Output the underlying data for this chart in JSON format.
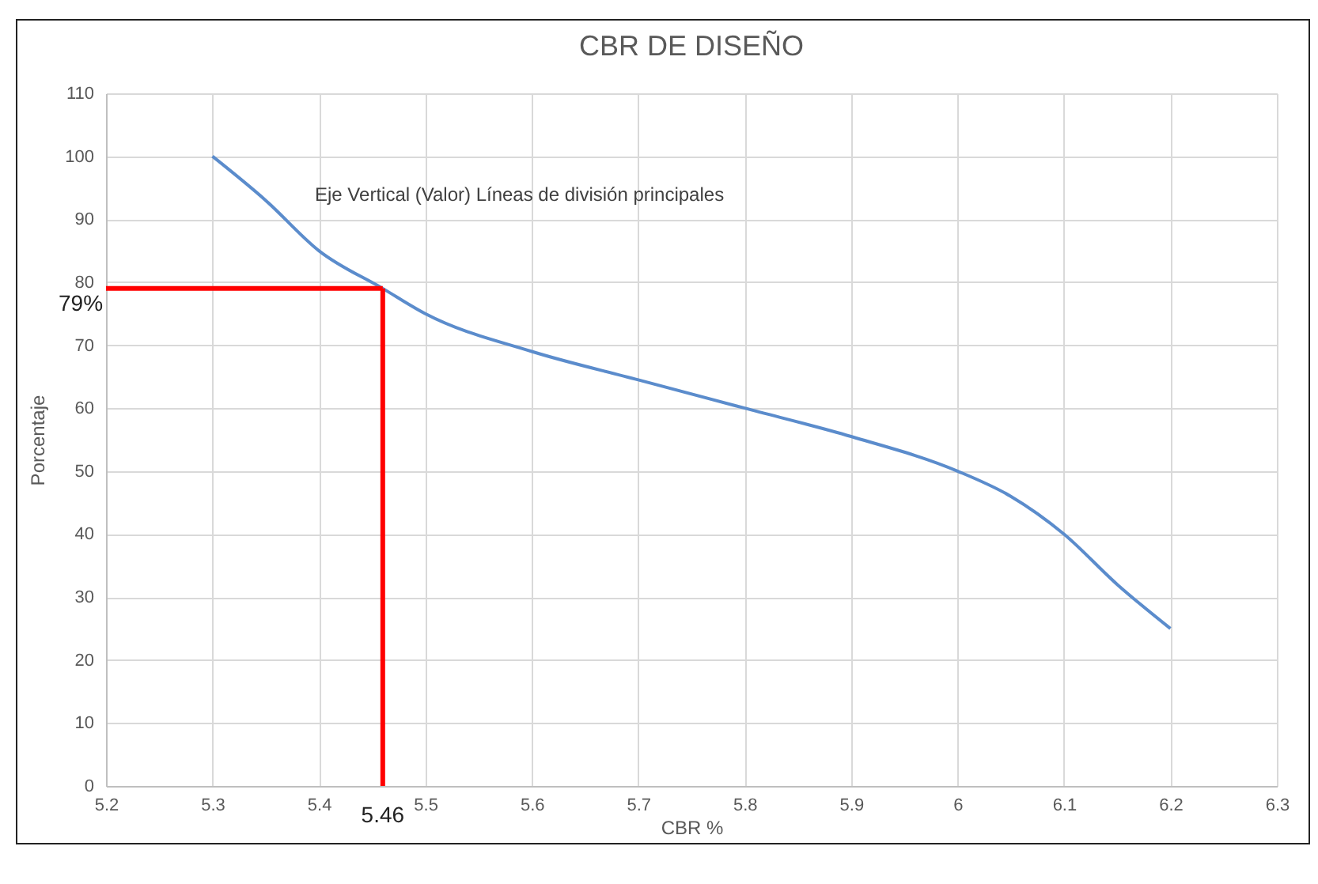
{
  "chart_data": {
    "type": "line",
    "title": "CBR DE DISEÑO",
    "xlabel": "CBR %",
    "ylabel": "Porcentaje",
    "x": [
      5.3,
      5.35,
      5.4,
      5.46,
      5.5,
      5.6,
      5.7,
      5.8,
      5.9,
      6.0,
      6.05,
      6.1,
      6.15,
      6.2
    ],
    "series": [
      {
        "color": "#5b8ccc",
        "values": [
          100,
          93,
          85,
          79,
          75,
          69,
          64.5,
          60,
          55.5,
          50,
          46,
          40,
          32,
          25
        ]
      }
    ],
    "xlim": [
      5.2,
      6.3
    ],
    "xticks": [
      5.2,
      5.3,
      5.4,
      5.5,
      5.6,
      5.7,
      5.8,
      5.9,
      6,
      6.1,
      6.2,
      6.3
    ],
    "ylim": [
      0,
      110
    ],
    "yticks": [
      0,
      10,
      20,
      30,
      40,
      50,
      60,
      70,
      80,
      90,
      100,
      110
    ],
    "grid": true,
    "marker": "none",
    "line_style": "solid",
    "ref_lines": [
      {
        "axis": "y",
        "value": 79,
        "label": "79%",
        "color": "#ff0000"
      },
      {
        "axis": "x",
        "value": 5.46,
        "label": "5.46",
        "color": "#ff0000"
      }
    ],
    "annotations": [
      "Eje Vertical (Valor)  Líneas de división principales"
    ]
  }
}
